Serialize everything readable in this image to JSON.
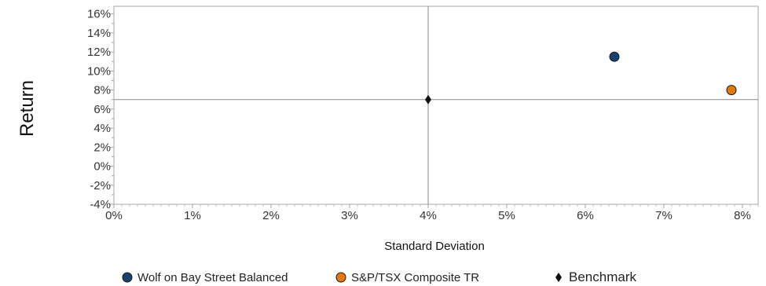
{
  "chart_data": {
    "type": "scatter",
    "xlabel": "Standard Deviation",
    "ylabel": "Return",
    "xlim": [
      0,
      8.2
    ],
    "ylim": [
      -4,
      16.8
    ],
    "x_ticks": [
      0,
      1,
      2,
      3,
      4,
      5,
      6,
      7,
      8
    ],
    "y_ticks": [
      -4,
      -2,
      0,
      2,
      4,
      6,
      8,
      10,
      12,
      14,
      16
    ],
    "x_tick_labels": [
      "0%",
      "1%",
      "2%",
      "3%",
      "4%",
      "5%",
      "6%",
      "7%",
      "8%"
    ],
    "y_tick_labels": [
      "-4%",
      "-2%",
      "0%",
      "2%",
      "4%",
      "6%",
      "8%",
      "10%",
      "12%",
      "14%",
      "16%"
    ],
    "reference_lines": {
      "x": 4.0,
      "y": 7.0
    },
    "grid": false,
    "legend_position": "bottom",
    "series": [
      {
        "name": "Wolf on Bay Street Balanced",
        "marker": "circle",
        "color": "#17406d",
        "x": 6.37,
        "y": 11.5
      },
      {
        "name": "S&P/TSX Composite TR",
        "marker": "circle",
        "color": "#e07a10",
        "x": 7.86,
        "y": 8.0
      },
      {
        "name": "Benchmark",
        "marker": "diamond",
        "color": "#111111",
        "x": 4.0,
        "y": 7.0
      }
    ]
  }
}
